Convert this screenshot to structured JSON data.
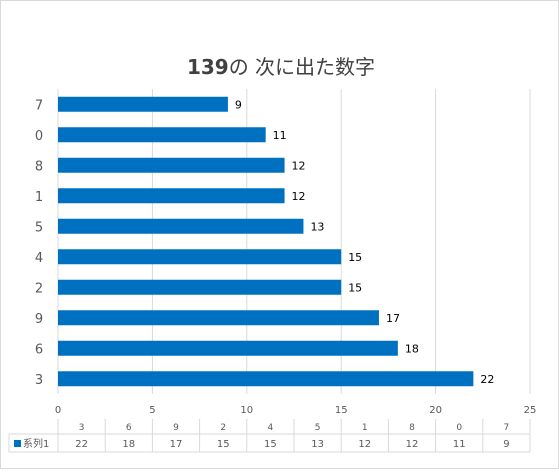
{
  "chart_data": {
    "type": "bar",
    "orientation": "horizontal",
    "title_main": "139",
    "title_rest": "の 次に出た数字",
    "categories": [
      "3",
      "6",
      "9",
      "2",
      "4",
      "5",
      "1",
      "8",
      "0",
      "7"
    ],
    "series": [
      {
        "name": "系列1",
        "values": [
          22,
          18,
          17,
          15,
          15,
          13,
          12,
          12,
          11,
          9
        ]
      }
    ],
    "xlim": [
      0,
      25
    ],
    "x_ticks": [
      "0",
      "5",
      "10",
      "15",
      "20",
      "25"
    ],
    "data_table": true,
    "colors": {
      "bar": "#0070c0",
      "grid": "#d9d9d9",
      "text": "#595959",
      "label": "#000000"
    }
  }
}
